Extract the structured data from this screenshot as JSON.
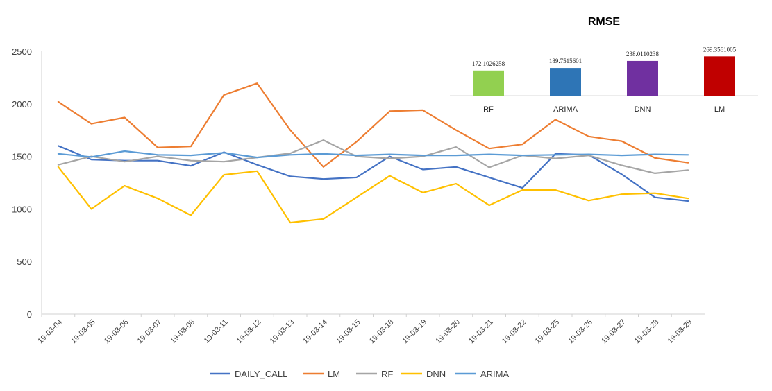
{
  "chart_data": [
    {
      "type": "line",
      "title": "",
      "xlabel": "",
      "ylabel": "",
      "ylim": [
        0,
        2500
      ],
      "yticks": [
        "0",
        "500",
        "1000",
        "1500",
        "2000",
        "2500"
      ],
      "grid": false,
      "legend_position": "bottom",
      "categories": [
        "19-03-04",
        "19-03-05",
        "19-03-06",
        "19-03-07",
        "19-03-08",
        "19-03-11",
        "19-03-12",
        "19-03-13",
        "19-03-14",
        "19-03-15",
        "19-03-18",
        "19-03-19",
        "19-03-20",
        "19-03-21",
        "19-03-22",
        "19-03-25",
        "19-03-26",
        "19-03-27",
        "19-03-28",
        "19-03-29"
      ],
      "series": [
        {
          "name": "DAILY_CALL",
          "color": "#4472C4",
          "values": [
            1600,
            1470,
            1460,
            1460,
            1410,
            1540,
            1420,
            1310,
            1285,
            1300,
            1500,
            1375,
            1400,
            1300,
            1200,
            1525,
            1515,
            1330,
            1110,
            1075
          ]
        },
        {
          "name": "LM",
          "color": "#ED7D31",
          "values": [
            2020,
            1810,
            1870,
            1585,
            1595,
            2085,
            2195,
            1750,
            1400,
            1640,
            1930,
            1940,
            1750,
            1575,
            1615,
            1850,
            1690,
            1645,
            1485,
            1440
          ]
        },
        {
          "name": "RF",
          "color": "#A5A5A5",
          "values": [
            1420,
            1500,
            1450,
            1500,
            1460,
            1450,
            1490,
            1530,
            1655,
            1500,
            1480,
            1500,
            1590,
            1395,
            1510,
            1480,
            1510,
            1415,
            1340,
            1370
          ]
        },
        {
          "name": "DNN",
          "color": "#FFC000",
          "values": [
            1400,
            1000,
            1220,
            1100,
            940,
            1325,
            1360,
            870,
            905,
            1110,
            1315,
            1155,
            1240,
            1035,
            1180,
            1180,
            1080,
            1140,
            1150,
            1100
          ]
        },
        {
          "name": "ARIMA",
          "color": "#5B9BD5",
          "values": [
            1525,
            1495,
            1550,
            1515,
            1510,
            1535,
            1490,
            1515,
            1525,
            1510,
            1520,
            1510,
            1510,
            1520,
            1510,
            1515,
            1520,
            1510,
            1520,
            1515
          ]
        }
      ]
    },
    {
      "type": "bar",
      "title": "RMSE",
      "categories": [
        "RF",
        "ARIMA",
        "DNN",
        "LM"
      ],
      "values": [
        172.1026258,
        189.7515601,
        238.0110238,
        269.3561005
      ],
      "value_labels": [
        "172.1026258",
        "189.7515601",
        "238.0110238",
        "269.3561005"
      ],
      "colors": [
        "#92D050",
        "#2E75B6",
        "#7030A0",
        "#C00000"
      ]
    }
  ]
}
